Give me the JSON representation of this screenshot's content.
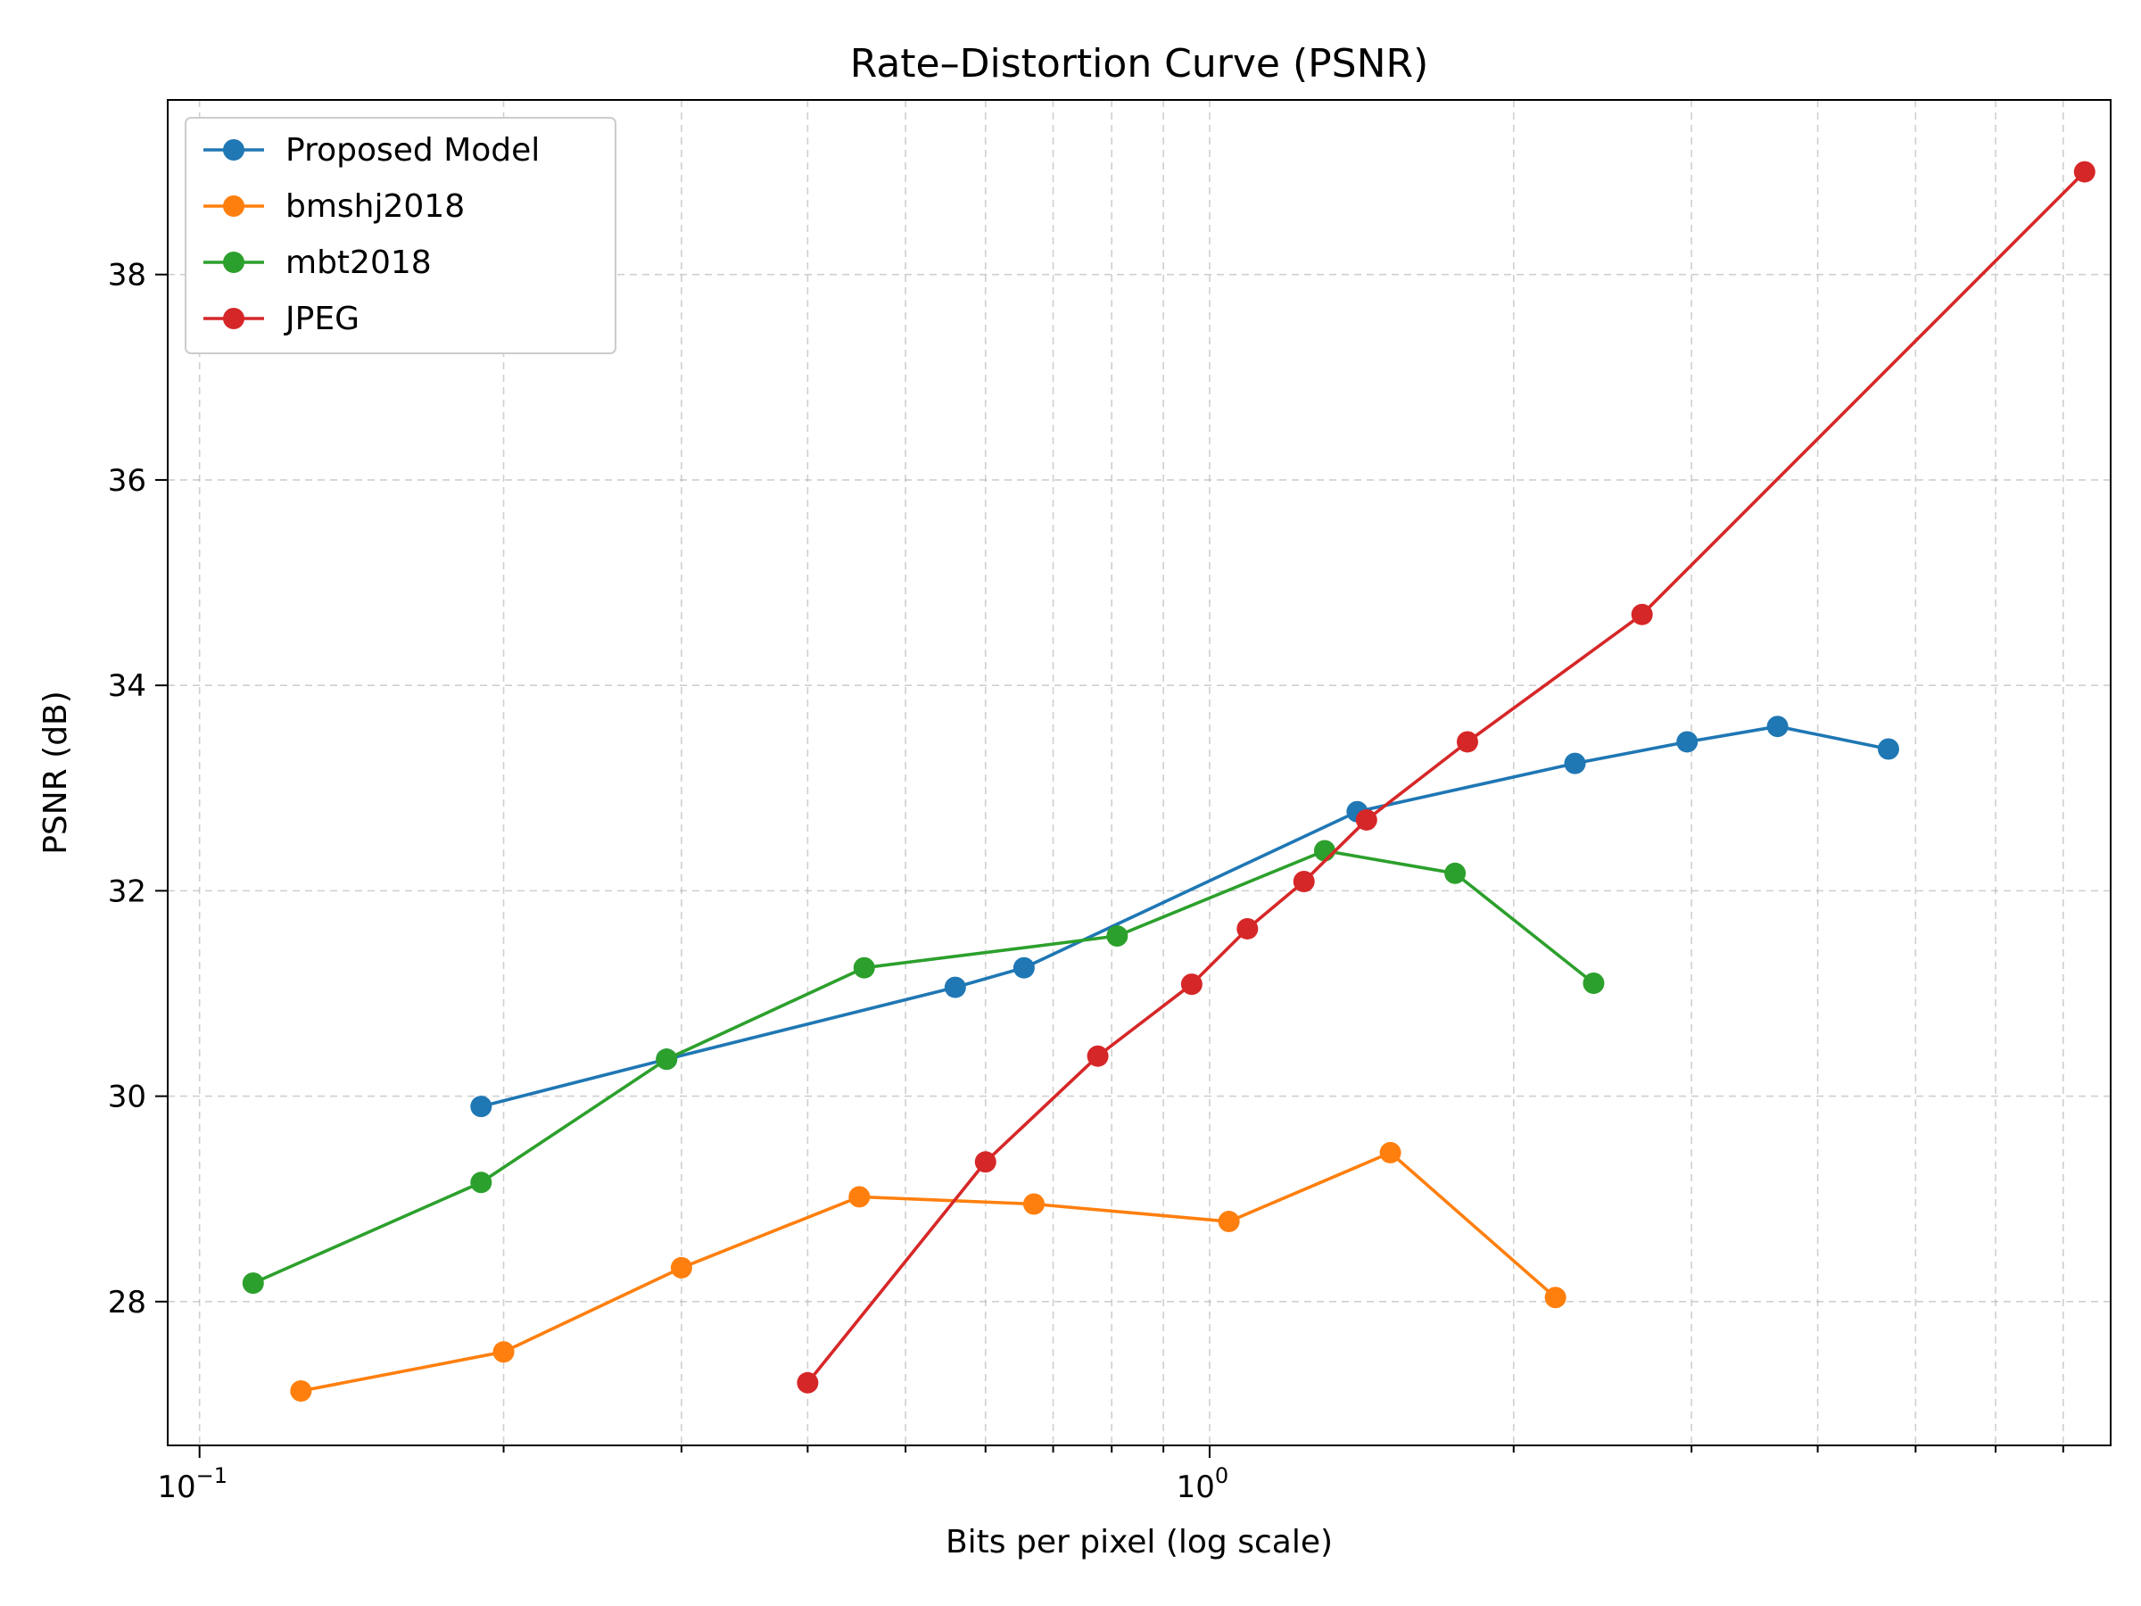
{
  "chart_data": {
    "type": "line",
    "title": "Rate–Distortion Curve (PSNR)",
    "xlabel": "Bits per pixel (log scale)",
    "ylabel": "PSNR (dB)",
    "xscale": "log",
    "xlim": [
      0.093,
      7.8
    ],
    "ylim": [
      26.6,
      39.7
    ],
    "grid": true,
    "legend_position": "top-left",
    "x_ticks": [
      {
        "value": 0.1,
        "base": "10",
        "exp": "−1"
      },
      {
        "value": 1,
        "base": "10",
        "exp": "0"
      }
    ],
    "y_ticks": [
      {
        "value": 28,
        "label": "28"
      },
      {
        "value": 30,
        "label": "30"
      },
      {
        "value": 32,
        "label": "32"
      },
      {
        "value": 34,
        "label": "34"
      },
      {
        "value": 36,
        "label": "36"
      },
      {
        "value": 38,
        "label": "38"
      }
    ],
    "series": [
      {
        "name": "Proposed Model",
        "color": "#1f77b4",
        "x": [
          0.19,
          0.29,
          0.56,
          0.655,
          1.4,
          2.3,
          2.97,
          3.65,
          4.7
        ],
        "y": [
          29.9,
          30.36,
          31.06,
          31.25,
          32.77,
          33.24,
          33.45,
          33.6,
          33.38
        ]
      },
      {
        "name": "bmshj2018",
        "color": "#ff7f0e",
        "x": [
          0.126,
          0.2,
          0.3,
          0.45,
          0.67,
          1.045,
          1.51,
          2.2
        ],
        "y": [
          27.13,
          27.51,
          28.33,
          29.02,
          28.95,
          28.78,
          29.45,
          28.04
        ]
      },
      {
        "name": "mbt2018",
        "color": "#2ca02c",
        "x": [
          0.113,
          0.19,
          0.29,
          0.455,
          0.81,
          1.3,
          1.75,
          2.4
        ],
        "y": [
          28.18,
          29.16,
          30.36,
          31.25,
          31.56,
          32.39,
          32.17,
          31.1
        ]
      },
      {
        "name": "JPEG",
        "color": "#d62728",
        "x": [
          0.4,
          0.6,
          0.775,
          0.96,
          1.09,
          1.24,
          1.43,
          1.8,
          2.68,
          7.35
        ],
        "y": [
          27.21,
          29.36,
          30.39,
          31.09,
          31.63,
          32.09,
          32.69,
          33.45,
          34.69,
          39.0
        ]
      }
    ]
  }
}
